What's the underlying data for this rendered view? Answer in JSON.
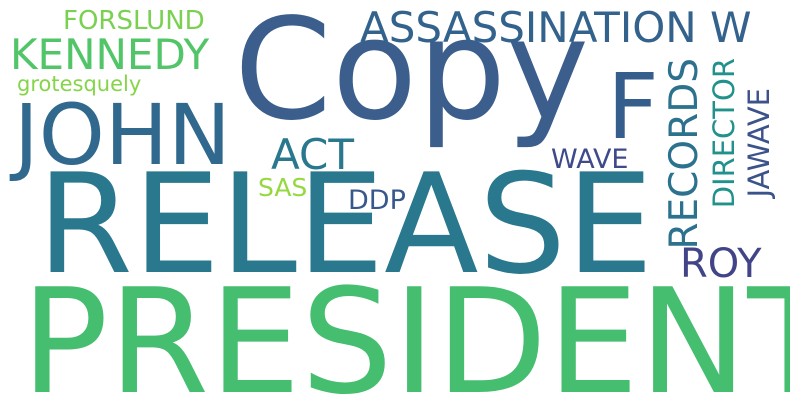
{
  "cloud": {
    "words": [
      {
        "text": "PRESIDENT",
        "color": "#45BE70"
      },
      {
        "text": "RELEASE",
        "color": "#2A788E"
      },
      {
        "text": "Copy",
        "color": "#3B5E8C"
      },
      {
        "text": "JOHN",
        "color": "#31688E"
      },
      {
        "text": "F",
        "color": "#355E8D"
      },
      {
        "text": "ASSASSINATION W",
        "color": "#33638D"
      },
      {
        "text": "KENNEDY",
        "color": "#52C569"
      },
      {
        "text": "FORSLUND",
        "color": "#7AD151"
      },
      {
        "text": "grotesquely",
        "color": "#86D549"
      },
      {
        "text": "RECORDS",
        "color": "#2C728E"
      },
      {
        "text": "DIRECTOR",
        "color": "#21918C"
      },
      {
        "text": "JAWAVE",
        "color": "#3B528B"
      },
      {
        "text": "ACT",
        "color": "#2A788E"
      },
      {
        "text": "WAVE",
        "color": "#3E4A89"
      },
      {
        "text": "SAS",
        "color": "#95D840"
      },
      {
        "text": "DDP",
        "color": "#38588C"
      },
      {
        "text": "ROY",
        "color": "#414487"
      }
    ]
  }
}
